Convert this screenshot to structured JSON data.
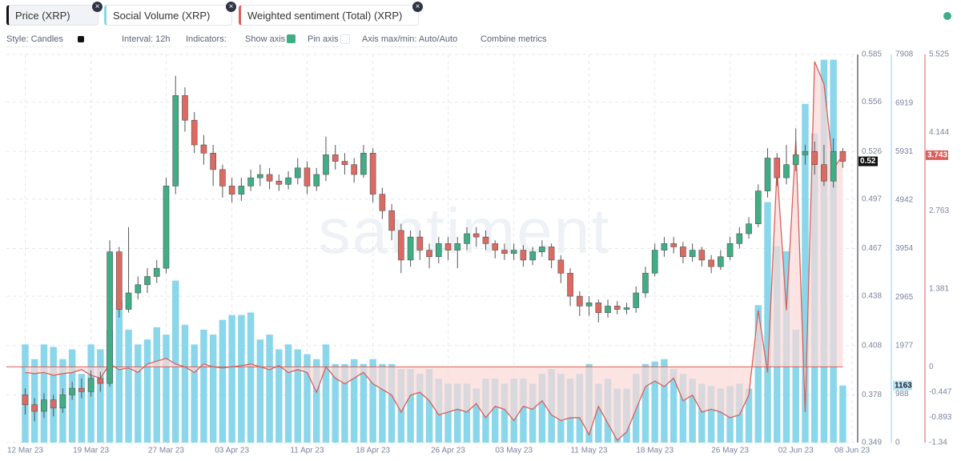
{
  "ui": {
    "metrics": [
      "Price (XRP)",
      "Social Volume (XRP)",
      "Weighted sentiment (Total) (XRP)"
    ],
    "options": [
      "Style: Candles",
      "Interval: 12h",
      "Indicators:",
      "Show axis",
      "Pin axis",
      "Axis max/min: Auto/Auto",
      "Combine metrics"
    ]
  },
  "chart_data": {
    "type": "candlestick",
    "watermark": "santiment",
    "xlim": [
      -2,
      88.5
    ],
    "xticks": [
      {
        "value": 0,
        "label": "12 Mar 23"
      },
      {
        "value": 7,
        "label": "19 Mar 23"
      },
      {
        "value": 15,
        "label": "27 Mar 23"
      },
      {
        "value": 22,
        "label": "03 Apr 23"
      },
      {
        "value": 30,
        "label": "11 Apr 23"
      },
      {
        "value": 37,
        "label": "18 Apr 23"
      },
      {
        "value": 45,
        "label": "26 Apr 23"
      },
      {
        "value": 52,
        "label": "03 May 23"
      },
      {
        "value": 60,
        "label": "11 May 23"
      },
      {
        "value": 67,
        "label": "18 May 23"
      },
      {
        "value": 75,
        "label": "26 May 23"
      },
      {
        "value": 82,
        "label": "02 Jun 23"
      },
      {
        "value": 88,
        "label": "08 Jun 23"
      }
    ],
    "ylim": [
      0.349,
      0.585
    ],
    "yticks": [
      0.349,
      0.378,
      0.408,
      0.438,
      0.467,
      0.497,
      0.526,
      0.556,
      0.585
    ],
    "y2lim": [
      0,
      7908
    ],
    "y2ticks": [
      0,
      988,
      1977,
      2965,
      3954,
      4942,
      5931,
      6919,
      7908
    ],
    "y3lim": [
      -1.34,
      5.525
    ],
    "y3ticks": [
      -1.34,
      -0.893,
      -0.447,
      0,
      1.381,
      2.763,
      4.144,
      5.525
    ],
    "grid": true,
    "x": [
      0,
      1,
      2,
      3,
      4,
      5,
      6,
      7,
      8,
      9,
      10,
      11,
      12,
      13,
      14,
      15,
      16,
      17,
      18,
      19,
      20,
      21,
      22,
      23,
      24,
      25,
      26,
      27,
      28,
      29,
      30,
      31,
      32,
      33,
      34,
      35,
      36,
      37,
      38,
      39,
      40,
      41,
      42,
      43,
      44,
      45,
      46,
      47,
      48,
      49,
      50,
      51,
      52,
      53,
      54,
      55,
      56,
      57,
      58,
      59,
      60,
      61,
      62,
      63,
      64,
      65,
      66,
      67,
      68,
      69,
      70,
      71,
      72,
      73,
      74,
      75,
      76,
      77,
      78,
      79,
      80,
      81,
      82,
      83,
      84,
      85,
      86,
      87
    ],
    "series": [
      {
        "name": "Price (XRP)",
        "type": "candlestick",
        "up_color": "#3fae84",
        "down_color": "#dd6a62",
        "open": [
          0.378,
          0.372,
          0.368,
          0.375,
          0.37,
          0.378,
          0.382,
          0.38,
          0.388,
          0.385,
          0.465,
          0.43,
          0.44,
          0.445,
          0.45,
          0.455,
          0.505,
          0.56,
          0.545,
          0.53,
          0.525,
          0.515,
          0.505,
          0.5,
          0.505,
          0.51,
          0.512,
          0.508,
          0.506,
          0.51,
          0.516,
          0.505,
          0.512,
          0.524,
          0.52,
          0.518,
          0.512,
          0.525,
          0.5,
          0.49,
          0.478,
          0.46,
          0.474,
          0.466,
          0.462,
          0.47,
          0.466,
          0.47,
          0.476,
          0.474,
          0.47,
          0.466,
          0.464,
          0.466,
          0.46,
          0.465,
          0.468,
          0.46,
          0.452,
          0.438,
          0.432,
          0.434,
          0.428,
          0.432,
          0.43,
          0.431,
          0.44,
          0.452,
          0.466,
          0.47,
          0.468,
          0.462,
          0.466,
          0.46,
          0.456,
          0.462,
          0.47,
          0.476,
          0.482,
          0.502,
          0.522,
          0.51,
          0.518,
          0.524,
          0.526,
          0.518,
          0.508,
          0.526
        ],
        "high": [
          0.382,
          0.376,
          0.379,
          0.378,
          0.382,
          0.386,
          0.388,
          0.393,
          0.392,
          0.472,
          0.468,
          0.48,
          0.45,
          0.455,
          0.46,
          0.51,
          0.572,
          0.565,
          0.55,
          0.536,
          0.53,
          0.518,
          0.51,
          0.51,
          0.515,
          0.518,
          0.516,
          0.512,
          0.514,
          0.522,
          0.52,
          0.516,
          0.535,
          0.53,
          0.525,
          0.522,
          0.53,
          0.528,
          0.504,
          0.494,
          0.482,
          0.478,
          0.478,
          0.47,
          0.474,
          0.474,
          0.474,
          0.48,
          0.48,
          0.478,
          0.472,
          0.47,
          0.47,
          0.469,
          0.468,
          0.472,
          0.47,
          0.463,
          0.455,
          0.441,
          0.438,
          0.436,
          0.436,
          0.435,
          0.434,
          0.444,
          0.456,
          0.47,
          0.474,
          0.474,
          0.471,
          0.47,
          0.468,
          0.463,
          0.466,
          0.474,
          0.48,
          0.486,
          0.506,
          0.528,
          0.525,
          0.53,
          0.54,
          0.53,
          0.532,
          0.53,
          0.534,
          0.528
        ],
        "low": [
          0.366,
          0.362,
          0.364,
          0.365,
          0.367,
          0.375,
          0.376,
          0.377,
          0.38,
          0.383,
          0.425,
          0.428,
          0.436,
          0.44,
          0.446,
          0.452,
          0.5,
          0.538,
          0.525,
          0.518,
          0.505,
          0.498,
          0.495,
          0.496,
          0.502,
          0.505,
          0.503,
          0.502,
          0.503,
          0.506,
          0.5,
          0.502,
          0.508,
          0.515,
          0.512,
          0.507,
          0.51,
          0.495,
          0.485,
          0.472,
          0.452,
          0.456,
          0.46,
          0.455,
          0.458,
          0.46,
          0.455,
          0.466,
          0.468,
          0.466,
          0.461,
          0.46,
          0.46,
          0.456,
          0.457,
          0.462,
          0.455,
          0.446,
          0.432,
          0.426,
          0.426,
          0.422,
          0.425,
          0.427,
          0.427,
          0.428,
          0.437,
          0.45,
          0.462,
          0.464,
          0.458,
          0.459,
          0.456,
          0.452,
          0.454,
          0.46,
          0.467,
          0.473,
          0.48,
          0.498,
          0.505,
          0.506,
          0.514,
          0.518,
          0.512,
          0.505,
          0.504,
          0.516
        ],
        "close": [
          0.372,
          0.368,
          0.375,
          0.37,
          0.378,
          0.382,
          0.38,
          0.388,
          0.385,
          0.465,
          0.43,
          0.44,
          0.445,
          0.45,
          0.455,
          0.505,
          0.56,
          0.545,
          0.53,
          0.525,
          0.515,
          0.505,
          0.5,
          0.505,
          0.51,
          0.512,
          0.508,
          0.506,
          0.51,
          0.516,
          0.505,
          0.512,
          0.524,
          0.52,
          0.518,
          0.512,
          0.525,
          0.5,
          0.49,
          0.478,
          0.46,
          0.474,
          0.466,
          0.462,
          0.47,
          0.466,
          0.47,
          0.476,
          0.474,
          0.47,
          0.466,
          0.464,
          0.466,
          0.46,
          0.465,
          0.468,
          0.46,
          0.452,
          0.438,
          0.432,
          0.434,
          0.428,
          0.432,
          0.43,
          0.431,
          0.44,
          0.452,
          0.466,
          0.47,
          0.468,
          0.462,
          0.466,
          0.46,
          0.456,
          0.462,
          0.47,
          0.476,
          0.482,
          0.502,
          0.522,
          0.51,
          0.518,
          0.524,
          0.526,
          0.518,
          0.508,
          0.526,
          0.52
        ]
      },
      {
        "name": "Social Volume (XRP)",
        "type": "bar",
        "axis": "y2",
        "color": "#8ad6ea",
        "label_color": "#b9e6f2",
        "values": [
          2000,
          1700,
          2000,
          1950,
          1700,
          1900,
          1400,
          2000,
          1900,
          2300,
          2900,
          2300,
          2000,
          2100,
          2350,
          2200,
          3300,
          2400,
          2000,
          2300,
          2200,
          2500,
          2600,
          2600,
          2650,
          2100,
          2200,
          1900,
          2000,
          1900,
          1800,
          1700,
          2000,
          1600,
          1600,
          1700,
          1600,
          1700,
          1600,
          1600,
          1500,
          1500,
          1400,
          1500,
          1300,
          1200,
          1200,
          1200,
          1100,
          1300,
          1300,
          1200,
          1300,
          1300,
          1200,
          1400,
          1500,
          1400,
          1300,
          1400,
          1600,
          1200,
          1300,
          1100,
          1100,
          1400,
          1600,
          1650,
          1700,
          1500,
          1400,
          1300,
          1200,
          1150,
          1100,
          1150,
          1200,
          1100,
          2800,
          4900,
          4000,
          3900,
          2300,
          6900,
          6300,
          7800,
          7800,
          1163
        ]
      },
      {
        "name": "Weighted sentiment (Total) (XRP)",
        "type": "line",
        "axis": "y3",
        "color": "#d9605a",
        "fill": "#fbd9d7",
        "values": [
          -0.1,
          -0.12,
          -0.1,
          -0.15,
          -0.12,
          -0.1,
          -0.05,
          -0.15,
          -0.2,
          0.05,
          -0.05,
          -0.02,
          -0.1,
          0.05,
          0.1,
          0.15,
          0.05,
          0,
          -0.1,
          0.05,
          0,
          -0.02,
          0,
          0.02,
          0.05,
          0,
          -0.05,
          0.02,
          -0.1,
          -0.05,
          -0.1,
          -0.45,
          0,
          -0.2,
          -0.3,
          -0.2,
          -0.1,
          -0.3,
          -0.4,
          -0.5,
          -0.8,
          -0.5,
          -0.45,
          -0.6,
          -0.85,
          -0.8,
          -0.75,
          -0.8,
          -0.65,
          -0.9,
          -0.7,
          -0.75,
          -0.95,
          -0.7,
          -0.75,
          -0.6,
          -0.85,
          -0.95,
          -0.9,
          -0.9,
          -1.2,
          -0.7,
          -1.0,
          -1.3,
          -1.15,
          -0.75,
          -0.35,
          -0.25,
          -0.35,
          -0.2,
          -0.6,
          -0.5,
          -0.8,
          -0.75,
          -0.8,
          -0.9,
          -0.85,
          -0.5,
          1.0,
          -0.1,
          3.5,
          1.0,
          4.0,
          -0.8,
          5.4,
          5.0,
          3.5,
          3.743
        ]
      }
    ]
  }
}
